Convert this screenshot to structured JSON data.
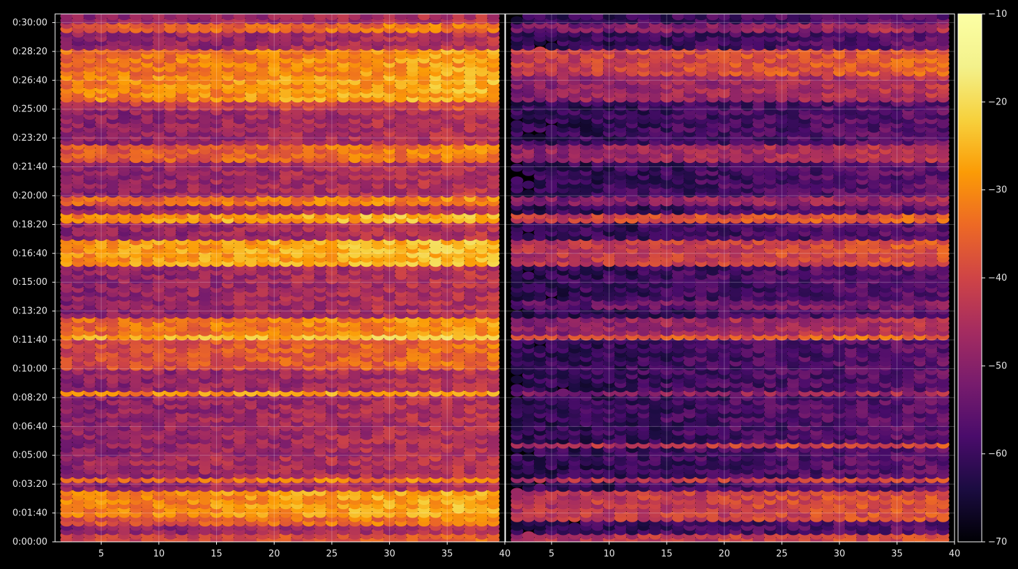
{
  "chart_data": {
    "type": "heatmap",
    "background": "#000000",
    "grid": true,
    "panels": [
      {
        "name": "left-panel",
        "xlim": [
          1,
          40
        ],
        "x_ticks": [
          5,
          10,
          15,
          20,
          25,
          30,
          35
        ],
        "x_tick_labels": [
          "5",
          "10",
          "15",
          "20",
          "25",
          "30",
          "35"
        ],
        "ylim_seconds": [
          0,
          1830
        ],
        "y_ticks_seconds": [
          0,
          100,
          200,
          300,
          400,
          500,
          600,
          700,
          800,
          900,
          1000,
          1100,
          1200,
          1300,
          1400,
          1500,
          1600,
          1700,
          1800
        ],
        "y_tick_labels": [
          "0:00:00",
          "0:01:40",
          "0:03:20",
          "0:05:00",
          "0:06:40",
          "0:08:20",
          "0:10:00",
          "0:11:40",
          "0:13:20",
          "0:15:00",
          "0:16:40",
          "0:18:20",
          "0:20:00",
          "0:21:40",
          "0:23:20",
          "0:25:00",
          "0:26:40",
          "0:28:20",
          "0:30:00"
        ],
        "base_level": -50,
        "bands": [
          {
            "start": 0,
            "end": 30,
            "level": -42
          },
          {
            "start": 60,
            "end": 80,
            "level": -38
          },
          {
            "start": 80,
            "end": 180,
            "level": -32
          },
          {
            "start": 200,
            "end": 215,
            "level": -36
          },
          {
            "start": 265,
            "end": 300,
            "level": -48
          },
          {
            "start": 335,
            "end": 345,
            "level": -38
          },
          {
            "start": 360,
            "end": 380,
            "level": -52
          },
          {
            "start": 500,
            "end": 520,
            "level": -32
          },
          {
            "start": 600,
            "end": 700,
            "level": -40
          },
          {
            "start": 700,
            "end": 720,
            "level": -28
          },
          {
            "start": 720,
            "end": 780,
            "level": -35
          },
          {
            "start": 810,
            "end": 830,
            "level": -52
          },
          {
            "start": 960,
            "end": 1040,
            "level": -30
          },
          {
            "start": 1100,
            "end": 1130,
            "level": -30
          },
          {
            "start": 1160,
            "end": 1200,
            "level": -36
          },
          {
            "start": 1230,
            "end": 1280,
            "level": -50
          },
          {
            "start": 1310,
            "end": 1370,
            "level": -38
          },
          {
            "start": 1500,
            "end": 1530,
            "level": -44
          },
          {
            "start": 1530,
            "end": 1620,
            "level": -32
          },
          {
            "start": 1620,
            "end": 1700,
            "level": -34
          },
          {
            "start": 1760,
            "end": 1790,
            "level": -38
          }
        ]
      },
      {
        "name": "right-panel",
        "xlim": [
          1,
          40
        ],
        "x_ticks": [
          5,
          10,
          15,
          20,
          25,
          30,
          35
        ],
        "x_tick_labels": [
          "5",
          "10",
          "15",
          "20",
          "25",
          "30",
          "35"
        ],
        "x_end_labels": [
          "40",
          "40"
        ],
        "ylim_seconds": [
          0,
          1830
        ],
        "base_level": -62,
        "bands": [
          {
            "start": 0,
            "end": 30,
            "level": -45
          },
          {
            "start": 70,
            "end": 170,
            "level": -44
          },
          {
            "start": 200,
            "end": 215,
            "level": -45
          },
          {
            "start": 330,
            "end": 345,
            "level": -45
          },
          {
            "start": 500,
            "end": 520,
            "level": -52
          },
          {
            "start": 700,
            "end": 720,
            "level": -40
          },
          {
            "start": 720,
            "end": 780,
            "level": -50
          },
          {
            "start": 810,
            "end": 830,
            "level": -56
          },
          {
            "start": 960,
            "end": 1040,
            "level": -44
          },
          {
            "start": 1100,
            "end": 1130,
            "level": -42
          },
          {
            "start": 1160,
            "end": 1200,
            "level": -52
          },
          {
            "start": 1310,
            "end": 1370,
            "level": -50
          },
          {
            "start": 1530,
            "end": 1620,
            "level": -50
          },
          {
            "start": 1620,
            "end": 1700,
            "level": -42
          },
          {
            "start": 1760,
            "end": 1790,
            "level": -52
          }
        ]
      }
    ],
    "colorbar": {
      "colormap": "inferno",
      "range": [
        -70,
        -10
      ],
      "ticks": [
        -10,
        -20,
        -30,
        -40,
        -50,
        -60,
        -70
      ],
      "tick_labels": [
        "−10",
        "−20",
        "−30",
        "−40",
        "−50",
        "−60",
        "−70"
      ]
    }
  }
}
